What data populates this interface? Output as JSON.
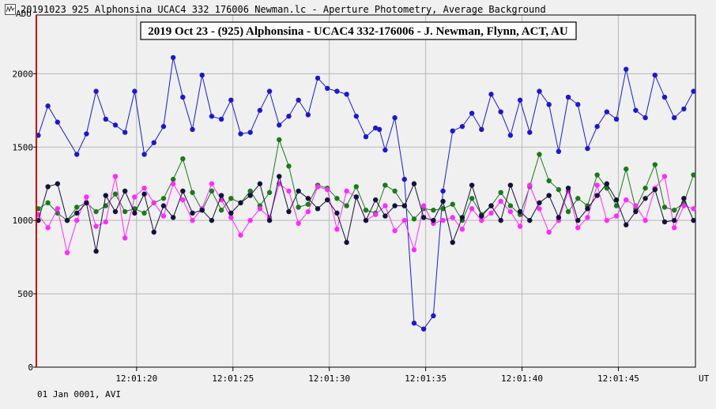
{
  "window": {
    "title": "20191023_925_Alphonsina_UCAC4_332_176006_Newman.lc - Aperture Photometry, Average Background",
    "icon": "lightcurve-icon"
  },
  "footer": {
    "date_mode": "01 Jan 0001, AVI"
  },
  "colors": {
    "target": "#1a1acd",
    "comp1": "#1a7a1a",
    "comp2": "#ff2aff",
    "comp3": "#12123a",
    "marker": "#cc0000",
    "grid": "#b8b8b8"
  },
  "chart_data": {
    "type": "scatter",
    "title": "2019 Oct 23 - (925) Alphonsina - UCAC4 332-176006 - J. Newman, Flynn, ACT, AU",
    "ylabel": "ADU",
    "xlabel": "UT",
    "ylim": [
      0,
      2400
    ],
    "xlim": [
      "12:01:14.8",
      "12:01:49.0"
    ],
    "yticks": [
      0,
      500,
      1000,
      1500,
      2000
    ],
    "xticks": [
      "12:01:20",
      "12:01:25",
      "12:01:30",
      "12:01:35",
      "12:01:40",
      "12:01:45"
    ],
    "grid": true,
    "marker_line_x": "12:01:14.8",
    "series": [
      {
        "key": "target",
        "color": "#1a1acd",
        "x": [
          0,
          0.5,
          1,
          2,
          2.5,
          3,
          3.5,
          4,
          4.5,
          5,
          5.5,
          6,
          6.5,
          7,
          7.5,
          8,
          8.5,
          9,
          9.5,
          10,
          10.5,
          11,
          11.5,
          12,
          12.5,
          13,
          13.5,
          14,
          14.5,
          15,
          15.5,
          16,
          16.5,
          17,
          17.5,
          17.7,
          18,
          18.5,
          19,
          19.5,
          20,
          20.5,
          21,
          21.5,
          22,
          22.5,
          23,
          23.5,
          24,
          24.5,
          25,
          25.5,
          26,
          26.5,
          27,
          27.5,
          28,
          28.5,
          29,
          29.5,
          30,
          30.5,
          31,
          31.5,
          32,
          32.5,
          33,
          33.5,
          34
        ],
        "y": [
          1580,
          1780,
          1670,
          1450,
          1590,
          1880,
          1690,
          1650,
          1600,
          1880,
          1450,
          1530,
          1640,
          2110,
          1840,
          1620,
          1990,
          1710,
          1690,
          1820,
          1590,
          1600,
          1750,
          1880,
          1650,
          1710,
          1820,
          1720,
          1970,
          1900,
          1880,
          1860,
          1710,
          1570,
          1630,
          1620,
          1480,
          1700,
          1280,
          300,
          260,
          350,
          1200,
          1610,
          1640,
          1730,
          1620,
          1860,
          1740,
          1580,
          1820,
          1600,
          1880,
          1790,
          1470,
          1840,
          1790,
          1490,
          1640,
          1740,
          1690,
          2030,
          1750,
          1700,
          1990,
          1840,
          1700,
          1760,
          1880
        ]
      },
      {
        "key": "comp1",
        "color": "#1a7a1a",
        "x": [
          0,
          0.5,
          1,
          1.5,
          2,
          2.5,
          3,
          3.5,
          4,
          4.5,
          5,
          5.5,
          6,
          6.5,
          7,
          7.5,
          8,
          8.5,
          9,
          9.5,
          10,
          10.5,
          11,
          11.5,
          12,
          12.5,
          13,
          13.5,
          14,
          14.5,
          15,
          15.5,
          16,
          16.5,
          17,
          17.5,
          18,
          18.5,
          19,
          19.5,
          20,
          20.5,
          21,
          21.5,
          22,
          22.5,
          23,
          23.5,
          24,
          24.5,
          25,
          25.5,
          26,
          26.5,
          27,
          27.5,
          28,
          28.5,
          29,
          29.5,
          30,
          30.5,
          31,
          31.5,
          32,
          32.5,
          33,
          33.5,
          34
        ],
        "y": [
          1080,
          1120,
          1050,
          1000,
          1090,
          1120,
          1060,
          1100,
          1180,
          1060,
          1080,
          1050,
          1120,
          1150,
          1280,
          1420,
          1190,
          1070,
          1200,
          1070,
          1150,
          1120,
          1200,
          1100,
          1190,
          1550,
          1370,
          1090,
          1110,
          1240,
          1220,
          1150,
          1100,
          1230,
          1070,
          1050,
          1240,
          1200,
          1100,
          1010,
          1080,
          1070,
          1080,
          1110,
          1000,
          1150,
          1040,
          1100,
          1190,
          1100,
          1040,
          1230,
          1450,
          1270,
          1210,
          1060,
          1150,
          1100,
          1310,
          1220,
          1100,
          1350,
          1080,
          1220,
          1380,
          1090,
          1070,
          1120,
          1310
        ]
      },
      {
        "key": "comp2",
        "color": "#ff2aff",
        "x": [
          0,
          0.5,
          1,
          1.5,
          2,
          2.5,
          3,
          3.5,
          4,
          4.5,
          5,
          5.5,
          6,
          6.5,
          7,
          7.5,
          8,
          8.5,
          9,
          9.5,
          10,
          10.5,
          11,
          11.5,
          12,
          12.5,
          13,
          13.5,
          14,
          14.5,
          15,
          15.5,
          16,
          16.5,
          17,
          17.5,
          18,
          18.5,
          19,
          19.5,
          20,
          20.5,
          21,
          21.5,
          22,
          22.5,
          23,
          23.5,
          24,
          24.5,
          25,
          25.5,
          26,
          26.5,
          27,
          27.5,
          28,
          28.5,
          29,
          29.5,
          30,
          30.5,
          31,
          31.5,
          32,
          32.5,
          33,
          33.5,
          34
        ],
        "y": [
          1040,
          950,
          1080,
          780,
          1000,
          1160,
          960,
          990,
          1300,
          880,
          1160,
          1220,
          1120,
          1030,
          1250,
          1140,
          1000,
          1080,
          1250,
          1140,
          1020,
          900,
          1000,
          1080,
          1020,
          1250,
          1200,
          980,
          1060,
          1230,
          1210,
          940,
          1200,
          1160,
          1000,
          1040,
          1100,
          930,
          1000,
          800,
          1100,
          980,
          1000,
          1020,
          940,
          1080,
          1000,
          1050,
          1130,
          1060,
          960,
          1240,
          1080,
          920,
          1000,
          1200,
          950,
          1020,
          1240,
          1000,
          1030,
          1140,
          1100,
          1000,
          1220,
          1300,
          950,
          1100,
          1080
        ]
      },
      {
        "key": "comp3",
        "color": "#12123a",
        "x": [
          0,
          0.5,
          1,
          1.5,
          2,
          2.5,
          3,
          3.5,
          4,
          4.5,
          5,
          5.5,
          6,
          6.5,
          7,
          7.5,
          8,
          8.5,
          9,
          9.5,
          10,
          10.5,
          11,
          11.5,
          12,
          12.5,
          13,
          13.5,
          14,
          14.5,
          15,
          15.5,
          16,
          16.5,
          17,
          17.5,
          18,
          18.5,
          19,
          19.5,
          20,
          20.5,
          21,
          21.5,
          22,
          22.5,
          23,
          23.5,
          24,
          24.5,
          25,
          25.5,
          26,
          26.5,
          27,
          27.5,
          28,
          28.5,
          29,
          29.5,
          30,
          30.5,
          31,
          31.5,
          32,
          32.5,
          33,
          33.5,
          34
        ],
        "y": [
          1000,
          1230,
          1250,
          1000,
          1050,
          1120,
          790,
          1170,
          1060,
          1200,
          1050,
          1180,
          920,
          1100,
          1020,
          1200,
          1050,
          1070,
          1000,
          1170,
          1050,
          1120,
          1170,
          1250,
          1000,
          1300,
          1060,
          1200,
          1150,
          1080,
          1140,
          1050,
          850,
          1160,
          1000,
          1140,
          1030,
          1100,
          1100,
          1250,
          1020,
          1000,
          1130,
          850,
          1020,
          1240,
          1030,
          1100,
          1000,
          1240,
          1060,
          1000,
          1120,
          1170,
          1020,
          1220,
          1000,
          1080,
          1170,
          1250,
          1140,
          970,
          1060,
          1150,
          1210,
          990,
          1000,
          1150,
          1000
        ]
      }
    ]
  }
}
